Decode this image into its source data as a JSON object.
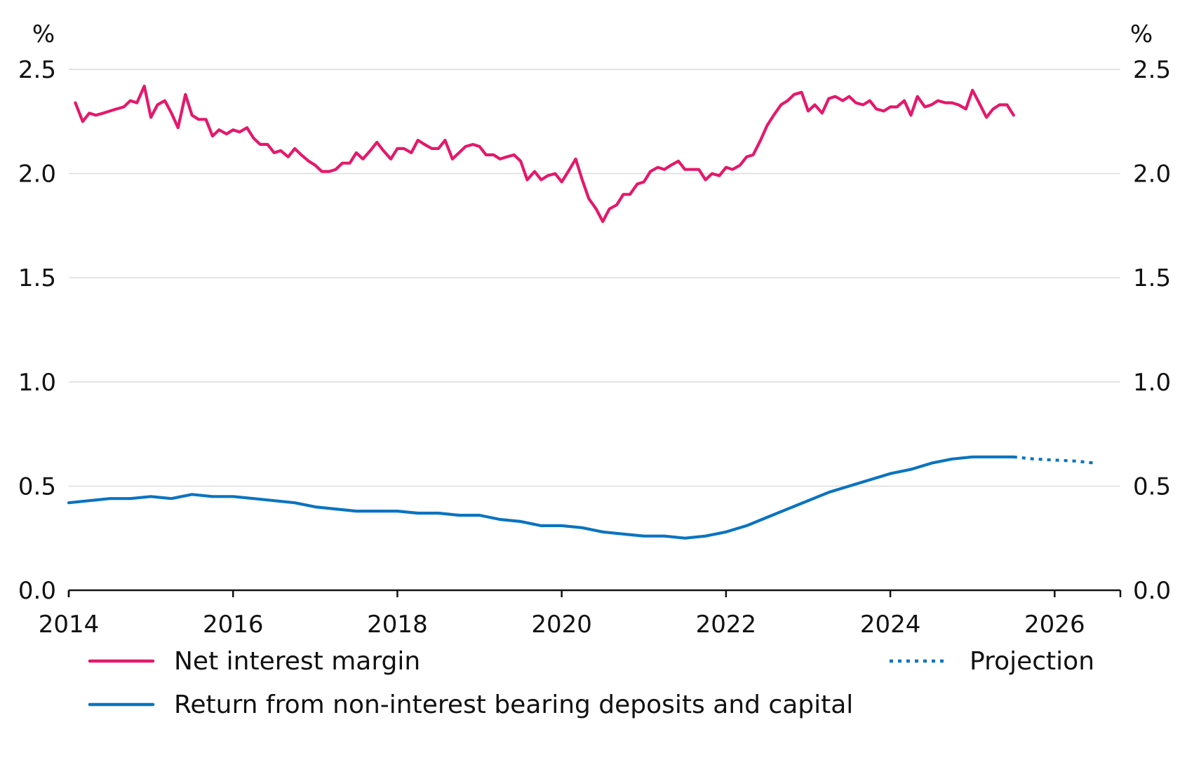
{
  "chart_data": {
    "type": "line",
    "left_unit": "%",
    "right_unit": "%",
    "ylim": [
      0,
      2.5
    ],
    "y_ticks": [
      "0.0",
      "0.5",
      "1.0",
      "1.5",
      "2.0",
      "2.5"
    ],
    "xlim": [
      2014,
      2026.8
    ],
    "x_ticks": [
      "2014",
      "2016",
      "2018",
      "2020",
      "2022",
      "2024",
      "2026"
    ],
    "grid": true,
    "legend_position": "bottom",
    "colors": {
      "nim": "#e5186a",
      "return": "#0a74c0",
      "axis": "#111111",
      "grid": "#d9d9d9"
    },
    "series": [
      {
        "name": "Net interest margin",
        "key": "nim",
        "style": "solid",
        "points": [
          [
            2014.08,
            2.34
          ],
          [
            2014.17,
            2.25
          ],
          [
            2014.25,
            2.29
          ],
          [
            2014.33,
            2.28
          ],
          [
            2014.42,
            2.29
          ],
          [
            2014.5,
            2.3
          ],
          [
            2014.58,
            2.31
          ],
          [
            2014.67,
            2.32
          ],
          [
            2014.75,
            2.35
          ],
          [
            2014.83,
            2.34
          ],
          [
            2014.92,
            2.42
          ],
          [
            2015.0,
            2.27
          ],
          [
            2015.08,
            2.33
          ],
          [
            2015.17,
            2.35
          ],
          [
            2015.25,
            2.29
          ],
          [
            2015.33,
            2.22
          ],
          [
            2015.42,
            2.38
          ],
          [
            2015.5,
            2.28
          ],
          [
            2015.58,
            2.26
          ],
          [
            2015.67,
            2.26
          ],
          [
            2015.75,
            2.18
          ],
          [
            2015.83,
            2.21
          ],
          [
            2015.92,
            2.19
          ],
          [
            2016.0,
            2.21
          ],
          [
            2016.08,
            2.2
          ],
          [
            2016.17,
            2.22
          ],
          [
            2016.25,
            2.17
          ],
          [
            2016.33,
            2.14
          ],
          [
            2016.42,
            2.14
          ],
          [
            2016.5,
            2.1
          ],
          [
            2016.58,
            2.11
          ],
          [
            2016.67,
            2.08
          ],
          [
            2016.75,
            2.12
          ],
          [
            2016.83,
            2.09
          ],
          [
            2016.92,
            2.06
          ],
          [
            2017.0,
            2.04
          ],
          [
            2017.08,
            2.01
          ],
          [
            2017.17,
            2.01
          ],
          [
            2017.25,
            2.02
          ],
          [
            2017.33,
            2.05
          ],
          [
            2017.42,
            2.05
          ],
          [
            2017.5,
            2.1
          ],
          [
            2017.58,
            2.07
          ],
          [
            2017.67,
            2.11
          ],
          [
            2017.75,
            2.15
          ],
          [
            2017.83,
            2.11
          ],
          [
            2017.92,
            2.07
          ],
          [
            2018.0,
            2.12
          ],
          [
            2018.08,
            2.12
          ],
          [
            2018.17,
            2.1
          ],
          [
            2018.25,
            2.16
          ],
          [
            2018.33,
            2.14
          ],
          [
            2018.42,
            2.12
          ],
          [
            2018.5,
            2.12
          ],
          [
            2018.58,
            2.16
          ],
          [
            2018.67,
            2.07
          ],
          [
            2018.75,
            2.1
          ],
          [
            2018.83,
            2.13
          ],
          [
            2018.92,
            2.14
          ],
          [
            2019.0,
            2.13
          ],
          [
            2019.08,
            2.09
          ],
          [
            2019.17,
            2.09
          ],
          [
            2019.25,
            2.07
          ],
          [
            2019.33,
            2.08
          ],
          [
            2019.42,
            2.09
          ],
          [
            2019.5,
            2.06
          ],
          [
            2019.58,
            1.97
          ],
          [
            2019.67,
            2.01
          ],
          [
            2019.75,
            1.97
          ],
          [
            2019.83,
            1.99
          ],
          [
            2019.92,
            2.0
          ],
          [
            2020.0,
            1.96
          ],
          [
            2020.08,
            2.01
          ],
          [
            2020.17,
            2.07
          ],
          [
            2020.25,
            1.97
          ],
          [
            2020.33,
            1.88
          ],
          [
            2020.42,
            1.83
          ],
          [
            2020.5,
            1.77
          ],
          [
            2020.58,
            1.83
          ],
          [
            2020.67,
            1.85
          ],
          [
            2020.75,
            1.9
          ],
          [
            2020.83,
            1.9
          ],
          [
            2020.92,
            1.95
          ],
          [
            2021.0,
            1.96
          ],
          [
            2021.08,
            2.01
          ],
          [
            2021.17,
            2.03
          ],
          [
            2021.25,
            2.02
          ],
          [
            2021.33,
            2.04
          ],
          [
            2021.42,
            2.06
          ],
          [
            2021.5,
            2.02
          ],
          [
            2021.58,
            2.02
          ],
          [
            2021.67,
            2.02
          ],
          [
            2021.75,
            1.97
          ],
          [
            2021.83,
            2.0
          ],
          [
            2021.92,
            1.99
          ],
          [
            2022.0,
            2.03
          ],
          [
            2022.08,
            2.02
          ],
          [
            2022.17,
            2.04
          ],
          [
            2022.25,
            2.08
          ],
          [
            2022.33,
            2.09
          ],
          [
            2022.42,
            2.16
          ],
          [
            2022.5,
            2.23
          ],
          [
            2022.58,
            2.28
          ],
          [
            2022.67,
            2.33
          ],
          [
            2022.75,
            2.35
          ],
          [
            2022.83,
            2.38
          ],
          [
            2022.92,
            2.39
          ],
          [
            2023.0,
            2.3
          ],
          [
            2023.08,
            2.33
          ],
          [
            2023.17,
            2.29
          ],
          [
            2023.25,
            2.36
          ],
          [
            2023.33,
            2.37
          ],
          [
            2023.42,
            2.35
          ],
          [
            2023.5,
            2.37
          ],
          [
            2023.58,
            2.34
          ],
          [
            2023.67,
            2.33
          ],
          [
            2023.75,
            2.35
          ],
          [
            2023.83,
            2.31
          ],
          [
            2023.92,
            2.3
          ],
          [
            2024.0,
            2.32
          ],
          [
            2024.08,
            2.32
          ],
          [
            2024.17,
            2.35
          ],
          [
            2024.25,
            2.28
          ],
          [
            2024.33,
            2.37
          ],
          [
            2024.42,
            2.32
          ],
          [
            2024.5,
            2.33
          ],
          [
            2024.58,
            2.35
          ],
          [
            2024.67,
            2.34
          ],
          [
            2024.75,
            2.34
          ],
          [
            2024.83,
            2.33
          ],
          [
            2024.92,
            2.31
          ],
          [
            2025.0,
            2.4
          ],
          [
            2025.08,
            2.34
          ],
          [
            2025.17,
            2.27
          ],
          [
            2025.25,
            2.31
          ],
          [
            2025.33,
            2.33
          ],
          [
            2025.42,
            2.33
          ],
          [
            2025.5,
            2.28
          ]
        ]
      },
      {
        "name": "Return from non-interest bearing deposits and capital",
        "key": "return",
        "style": "solid",
        "points": [
          [
            2014.0,
            0.42
          ],
          [
            2014.25,
            0.43
          ],
          [
            2014.5,
            0.44
          ],
          [
            2014.75,
            0.44
          ],
          [
            2015.0,
            0.45
          ],
          [
            2015.25,
            0.44
          ],
          [
            2015.5,
            0.46
          ],
          [
            2015.75,
            0.45
          ],
          [
            2016.0,
            0.45
          ],
          [
            2016.25,
            0.44
          ],
          [
            2016.5,
            0.43
          ],
          [
            2016.75,
            0.42
          ],
          [
            2017.0,
            0.4
          ],
          [
            2017.25,
            0.39
          ],
          [
            2017.5,
            0.38
          ],
          [
            2017.75,
            0.38
          ],
          [
            2018.0,
            0.38
          ],
          [
            2018.25,
            0.37
          ],
          [
            2018.5,
            0.37
          ],
          [
            2018.75,
            0.36
          ],
          [
            2019.0,
            0.36
          ],
          [
            2019.25,
            0.34
          ],
          [
            2019.5,
            0.33
          ],
          [
            2019.75,
            0.31
          ],
          [
            2020.0,
            0.31
          ],
          [
            2020.25,
            0.3
          ],
          [
            2020.5,
            0.28
          ],
          [
            2020.75,
            0.27
          ],
          [
            2021.0,
            0.26
          ],
          [
            2021.25,
            0.26
          ],
          [
            2021.5,
            0.25
          ],
          [
            2021.75,
            0.26
          ],
          [
            2022.0,
            0.28
          ],
          [
            2022.25,
            0.31
          ],
          [
            2022.5,
            0.35
          ],
          [
            2022.75,
            0.39
          ],
          [
            2023.0,
            0.43
          ],
          [
            2023.25,
            0.47
          ],
          [
            2023.5,
            0.5
          ],
          [
            2023.75,
            0.53
          ],
          [
            2024.0,
            0.56
          ],
          [
            2024.25,
            0.58
          ],
          [
            2024.5,
            0.61
          ],
          [
            2024.75,
            0.63
          ],
          [
            2025.0,
            0.64
          ],
          [
            2025.25,
            0.64
          ],
          [
            2025.5,
            0.64
          ]
        ]
      },
      {
        "name": "Projection",
        "key": "projection",
        "style": "dotted",
        "points": [
          [
            2025.5,
            0.64
          ],
          [
            2025.75,
            0.63
          ],
          [
            2026.0,
            0.625
          ],
          [
            2026.25,
            0.62
          ],
          [
            2026.5,
            0.61
          ]
        ]
      }
    ]
  }
}
